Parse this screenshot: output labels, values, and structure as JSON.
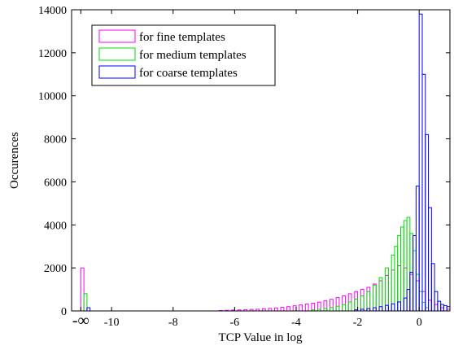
{
  "chart_data": {
    "type": "bar",
    "title": "",
    "xlabel": "TCP Value in log",
    "ylabel": "Occurences",
    "xlim": [
      -11.3,
      1.0
    ],
    "ylim": [
      0,
      14000
    ],
    "x_ticks": [
      {
        "value": -11.0,
        "label": "-∞"
      },
      {
        "value": -10,
        "label": "-10"
      },
      {
        "value": -8,
        "label": "-8"
      },
      {
        "value": -6,
        "label": "-6"
      },
      {
        "value": -4,
        "label": "-4"
      },
      {
        "value": -2,
        "label": "-2"
      },
      {
        "value": 0,
        "label": "0"
      }
    ],
    "y_ticks": [
      0,
      2000,
      4000,
      6000,
      8000,
      10000,
      12000,
      14000
    ],
    "grid": false,
    "legend_position": "top-left",
    "bin_width": 0.1,
    "series": [
      {
        "name": "for fine templates",
        "color": "#ff00ff",
        "values": [
          [
            -10.95,
            2000
          ],
          [
            -6.45,
            20
          ],
          [
            -6.25,
            30
          ],
          [
            -6.05,
            40
          ],
          [
            -5.85,
            50
          ],
          [
            -5.65,
            60
          ],
          [
            -5.45,
            70
          ],
          [
            -5.25,
            80
          ],
          [
            -5.05,
            100
          ],
          [
            -4.85,
            120
          ],
          [
            -4.65,
            140
          ],
          [
            -4.45,
            170
          ],
          [
            -4.25,
            200
          ],
          [
            -4.05,
            240
          ],
          [
            -3.85,
            280
          ],
          [
            -3.65,
            320
          ],
          [
            -3.45,
            360
          ],
          [
            -3.25,
            410
          ],
          [
            -3.05,
            470
          ],
          [
            -2.85,
            540
          ],
          [
            -2.65,
            620
          ],
          [
            -2.45,
            700
          ],
          [
            -2.25,
            800
          ],
          [
            -2.05,
            900
          ],
          [
            -1.85,
            1000
          ],
          [
            -1.65,
            1100
          ],
          [
            -1.45,
            1250
          ],
          [
            -1.25,
            1400
          ],
          [
            -1.05,
            1650
          ],
          [
            -0.85,
            1900
          ],
          [
            -0.65,
            2100
          ],
          [
            -0.45,
            2000
          ],
          [
            -0.25,
            1700
          ],
          [
            -0.05,
            1400
          ],
          [
            0.15,
            900
          ],
          [
            0.35,
            500
          ],
          [
            0.55,
            300
          ],
          [
            0.75,
            150
          ],
          [
            0.95,
            80
          ]
        ]
      },
      {
        "name": "for medium templates",
        "color": "#00dd00",
        "values": [
          [
            -10.85,
            800
          ],
          [
            -3.45,
            50
          ],
          [
            -3.25,
            80
          ],
          [
            -3.05,
            120
          ],
          [
            -2.85,
            160
          ],
          [
            -2.65,
            220
          ],
          [
            -2.45,
            300
          ],
          [
            -2.25,
            420
          ],
          [
            -2.05,
            550
          ],
          [
            -1.85,
            700
          ],
          [
            -1.65,
            900
          ],
          [
            -1.45,
            1200
          ],
          [
            -1.25,
            1550
          ],
          [
            -1.05,
            2000
          ],
          [
            -0.85,
            2600
          ],
          [
            -0.75,
            3000
          ],
          [
            -0.65,
            3500
          ],
          [
            -0.55,
            3900
          ],
          [
            -0.45,
            4200
          ],
          [
            -0.35,
            4350
          ],
          [
            -0.25,
            3600
          ],
          [
            -0.15,
            2800
          ],
          [
            -0.05,
            1700
          ],
          [
            0.05,
            900
          ],
          [
            0.15,
            400
          ],
          [
            0.25,
            150
          ]
        ]
      },
      {
        "name": "for coarse templates",
        "color": "#0000ff",
        "values": [
          [
            -10.75,
            150
          ],
          [
            -2.05,
            50
          ],
          [
            -1.85,
            80
          ],
          [
            -1.65,
            110
          ],
          [
            -1.45,
            150
          ],
          [
            -1.25,
            200
          ],
          [
            -1.05,
            260
          ],
          [
            -0.85,
            330
          ],
          [
            -0.65,
            420
          ],
          [
            -0.45,
            600
          ],
          [
            -0.35,
            1000
          ],
          [
            -0.25,
            1800
          ],
          [
            -0.15,
            3500
          ],
          [
            -0.05,
            5800
          ],
          [
            0.05,
            13800
          ],
          [
            0.15,
            11000
          ],
          [
            0.25,
            8200
          ],
          [
            0.35,
            4800
          ],
          [
            0.45,
            2200
          ],
          [
            0.55,
            900
          ],
          [
            0.65,
            450
          ],
          [
            0.75,
            300
          ],
          [
            0.85,
            250
          ],
          [
            0.95,
            200
          ]
        ]
      }
    ]
  }
}
